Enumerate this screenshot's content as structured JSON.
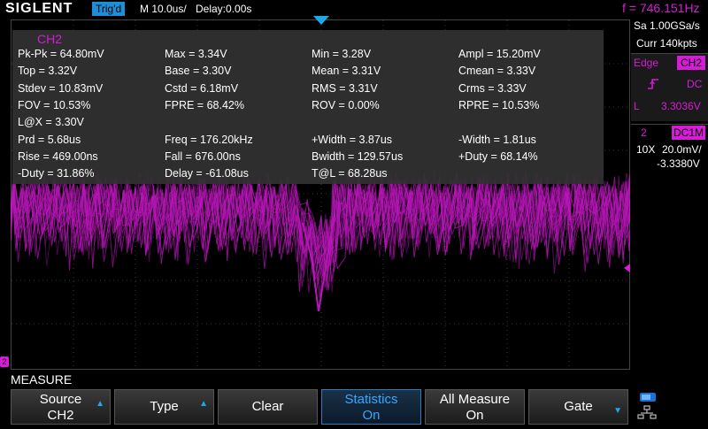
{
  "header": {
    "brand": "SIGLENT",
    "trigger_status": "Trig'd",
    "timebase": "M 10.0us/",
    "delay": "Delay:0.00s",
    "frequency": "f = 746.151Hz"
  },
  "measure": {
    "channel": "CH2",
    "items": [
      "Pk-Pk = 64.80mV",
      "Max = 3.34V",
      "Min = 3.28V",
      "Ampl = 15.20mV",
      "Top = 3.32V",
      "Base = 3.30V",
      "Mean = 3.31V",
      "Cmean = 3.33V",
      "Stdev = 10.83mV",
      "Cstd = 6.18mV",
      "RMS = 3.31V",
      "Crms = 3.33V",
      "FOV = 10.53%",
      "FPRE = 68.42%",
      "ROV = 0.00%",
      "RPRE = 10.53%",
      "L@X = 3.30V",
      "Prd = 5.68us",
      "Freq = 176.20kHz",
      "+Width = 3.87us",
      "-Width = 1.81us",
      "Rise = 469.00ns",
      "Fall = 676.00ns",
      "Bwidth = 129.57us",
      "+Duty = 68.14%",
      "-Duty = 31.86%",
      "Delay = -61.08us",
      "T@L = 68.28us"
    ]
  },
  "right_panel": {
    "sample_rate": "Sa 1.00GSa/s",
    "memory_depth": "Curr 140kpts",
    "trigger": {
      "type": "Edge",
      "source": "CH2",
      "slope_icon": "rising-edge-icon",
      "coupling": "DC",
      "level_label": "L",
      "level": "3.3036V"
    },
    "channel": {
      "number": "2",
      "coupling": "DC1M",
      "probe": "10X",
      "scale": "20.0mV/",
      "offset": "-3.3380V"
    }
  },
  "menu": {
    "title": "MEASURE",
    "softkeys": [
      {
        "line1": "Source",
        "line2": "CH2"
      },
      {
        "line1": "Type",
        "line2": ""
      },
      {
        "line1": "Clear",
        "line2": ""
      },
      {
        "line1": "Statistics",
        "line2": "On"
      },
      {
        "line1": "All Measure",
        "line2": "On"
      },
      {
        "line1": "Gate",
        "line2": ""
      }
    ]
  },
  "markers": {
    "channel_marker": "2"
  },
  "colors": {
    "ch2": "#d81bd8",
    "accent": "#1fa8e8"
  }
}
